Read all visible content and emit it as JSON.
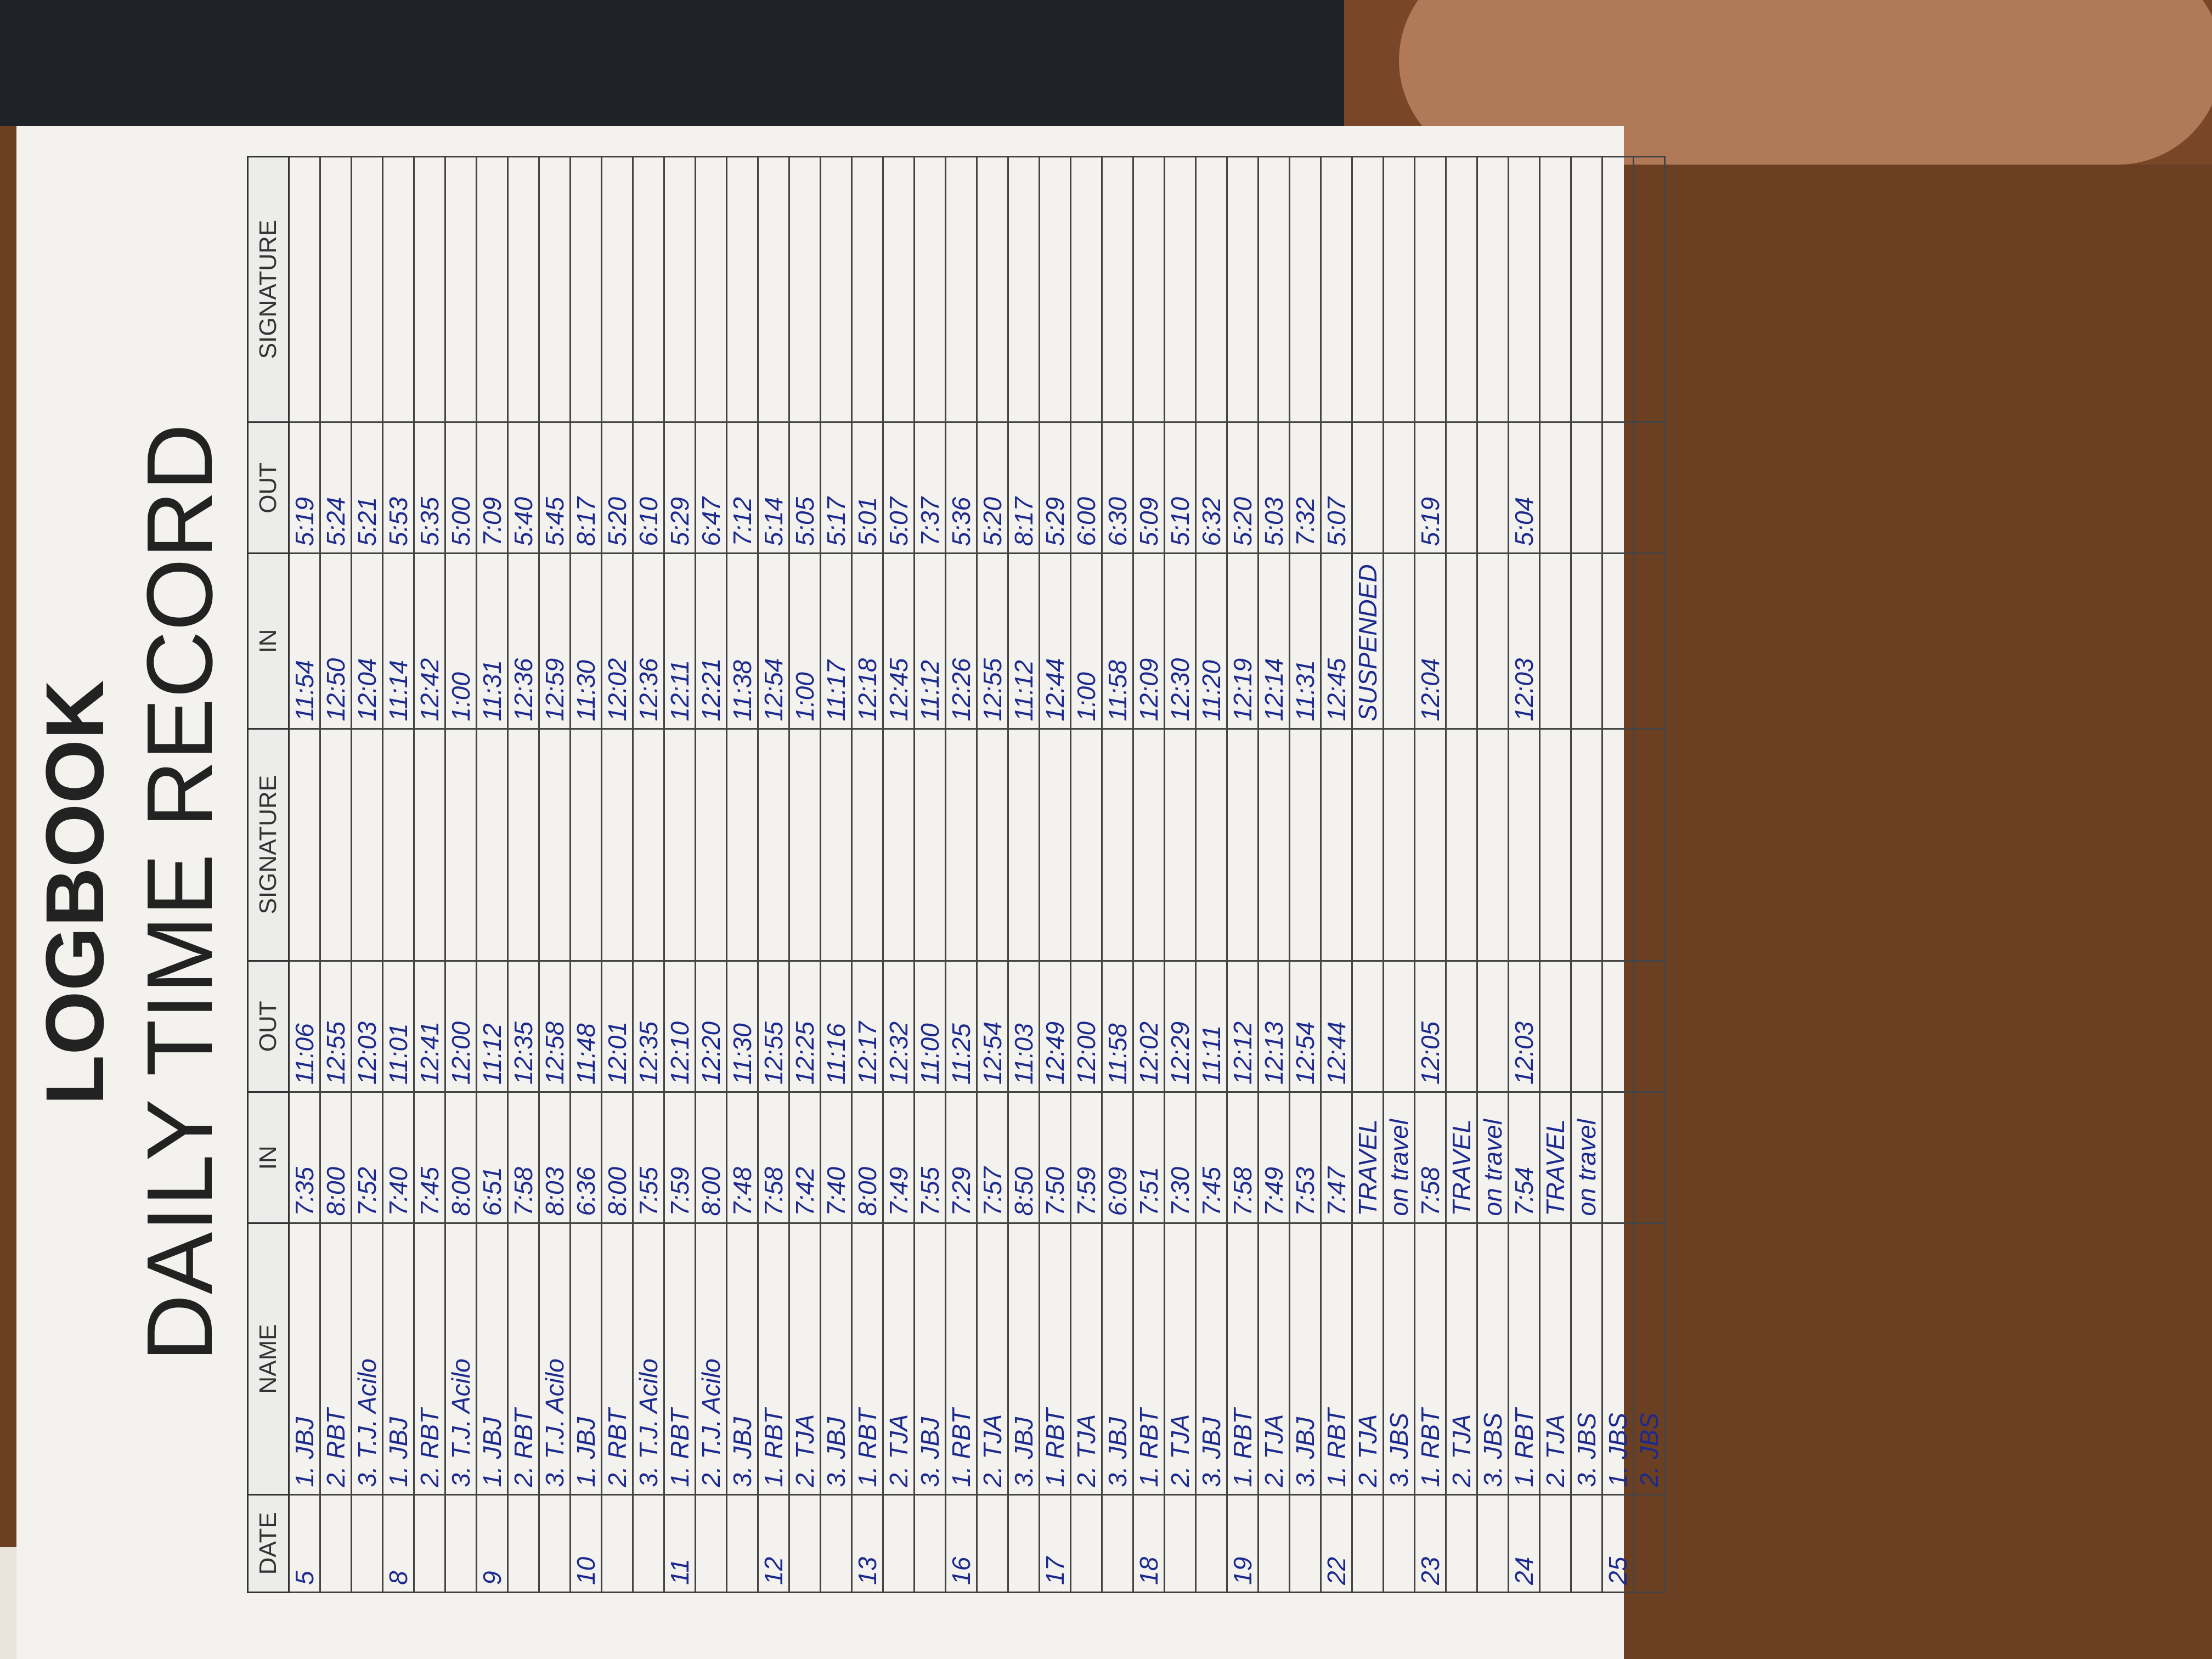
{
  "header": {
    "title": "LOGBOOK",
    "subtitle": "DAILY TIME RECORD"
  },
  "table": {
    "columns": [
      "DATE",
      "NAME",
      "IN",
      "OUT",
      "SIGNATURE",
      "IN",
      "OUT",
      "SIGNATURE"
    ],
    "rows": [
      {
        "date": "5",
        "name": "1. JBJ",
        "am_in": "7:35",
        "am_out": "11:06",
        "pm_in": "11:54",
        "pm_out": "5:19"
      },
      {
        "name": "2. RBT",
        "am_in": "8:00",
        "am_out": "12:55",
        "pm_in": "12:50",
        "pm_out": "5:24"
      },
      {
        "name": "3. T.J. Acilo",
        "am_in": "7:52",
        "am_out": "12:03",
        "pm_in": "12:04",
        "pm_out": "5:21"
      },
      {
        "date": "8",
        "name": "1. JBJ",
        "am_in": "7:40",
        "am_out": "11:01",
        "pm_in": "11:14",
        "pm_out": "5:53"
      },
      {
        "name": "2. RBT",
        "am_in": "7:45",
        "am_out": "12:41",
        "pm_in": "12:42",
        "pm_out": "5:35"
      },
      {
        "name": "3. T.J. Acilo",
        "am_in": "8:00",
        "am_out": "12:00",
        "pm_in": "1:00",
        "pm_out": "5:00"
      },
      {
        "date": "9",
        "name": "1. JBJ",
        "am_in": "6:51",
        "am_out": "11:12",
        "pm_in": "11:31",
        "pm_out": "7:09"
      },
      {
        "name": "2. RBT",
        "am_in": "7:58",
        "am_out": "12:35",
        "pm_in": "12:36",
        "pm_out": "5:40"
      },
      {
        "name": "3. T.J. Acilo",
        "am_in": "8:03",
        "am_out": "12:58",
        "pm_in": "12:59",
        "pm_out": "5:45"
      },
      {
        "date": "10",
        "name": "1. JBJ",
        "am_in": "6:36",
        "am_out": "11:48",
        "pm_in": "11:30",
        "pm_out": "8:17"
      },
      {
        "name": "2. RBT",
        "am_in": "8:00",
        "am_out": "12:01",
        "pm_in": "12:02",
        "pm_out": "5:20"
      },
      {
        "name": "3. T.J. Acilo",
        "am_in": "7:55",
        "am_out": "12:35",
        "pm_in": "12:36",
        "pm_out": "6:10"
      },
      {
        "date": "11",
        "name": "1. RBT",
        "am_in": "7:59",
        "am_out": "12:10",
        "pm_in": "12:11",
        "pm_out": "5:29"
      },
      {
        "name": "2. T.J. Acilo",
        "am_in": "8:00",
        "am_out": "12:20",
        "pm_in": "12:21",
        "pm_out": "6:47"
      },
      {
        "name": "3. JBJ",
        "am_in": "7:48",
        "am_out": "11:30",
        "pm_in": "11:38",
        "pm_out": "7:12"
      },
      {
        "date": "12",
        "name": "1. RBT",
        "am_in": "7:58",
        "am_out": "12:55",
        "pm_in": "12:54",
        "pm_out": "5:14"
      },
      {
        "name": "2. TJA",
        "am_in": "7:42",
        "am_out": "12:25",
        "pm_in": "1:00",
        "pm_out": "5:05"
      },
      {
        "name": "3. JBJ",
        "am_in": "7:40",
        "am_out": "11:16",
        "pm_in": "11:17",
        "pm_out": "5:17"
      },
      {
        "date": "13",
        "name": "1. RBT",
        "am_in": "8:00",
        "am_out": "12:17",
        "pm_in": "12:18",
        "pm_out": "5:01"
      },
      {
        "name": "2. TJA",
        "am_in": "7:49",
        "am_out": "12:32",
        "pm_in": "12:45",
        "pm_out": "5:07"
      },
      {
        "name": "3. JBJ",
        "am_in": "7:55",
        "am_out": "11:00",
        "pm_in": "11:12",
        "pm_out": "7:37"
      },
      {
        "date": "16",
        "name": "1. RBT",
        "am_in": "7:29",
        "am_out": "11:25",
        "pm_in": "12:26",
        "pm_out": "5:36"
      },
      {
        "name": "2. TJA",
        "am_in": "7:57",
        "am_out": "12:54",
        "pm_in": "12:55",
        "pm_out": "5:20"
      },
      {
        "name": "3. JBJ",
        "am_in": "8:50",
        "am_out": "11:03",
        "pm_in": "11:12",
        "pm_out": "8:17"
      },
      {
        "date": "17",
        "name": "1. RBT",
        "am_in": "7:50",
        "am_out": "12:49",
        "pm_in": "12:44",
        "pm_out": "5:29"
      },
      {
        "name": "2. TJA",
        "am_in": "7:59",
        "am_out": "12:00",
        "pm_in": "1:00",
        "pm_out": "6:00"
      },
      {
        "name": "3. JBJ",
        "am_in": "6:09",
        "am_out": "11:58",
        "pm_in": "11:58",
        "pm_out": "6:30"
      },
      {
        "date": "18",
        "name": "1. RBT",
        "am_in": "7:51",
        "am_out": "12:02",
        "pm_in": "12:09",
        "pm_out": "5:09"
      },
      {
        "name": "2. TJA",
        "am_in": "7:30",
        "am_out": "12:29",
        "pm_in": "12:30",
        "pm_out": "5:10"
      },
      {
        "name": "3. JBJ",
        "am_in": "7:45",
        "am_out": "11:11",
        "pm_in": "11:20",
        "pm_out": "6:32"
      },
      {
        "date": "19",
        "name": "1. RBT",
        "am_in": "7:58",
        "am_out": "12:12",
        "pm_in": "12:19",
        "pm_out": "5:20"
      },
      {
        "name": "2. TJA",
        "am_in": "7:49",
        "am_out": "12:13",
        "pm_in": "12:14",
        "pm_out": "5:03"
      },
      {
        "name": "3. JBJ",
        "am_in": "7:53",
        "am_out": "12:54",
        "pm_in": "11:31",
        "pm_out": "7:32"
      },
      {
        "date": "22",
        "name": "1. RBT",
        "am_in": "7:47",
        "am_out": "12:44",
        "pm_in": "12:45",
        "pm_out": "5:07"
      },
      {
        "name": "2. TJA",
        "am_in": "TRAVEL",
        "pm_in": "SUSPENDED"
      },
      {
        "name": "3. JBS",
        "am_in": "on travel"
      },
      {
        "date": "23",
        "name": "1. RBT",
        "am_in": "7:58",
        "am_out": "12:05",
        "pm_in": "12:04",
        "pm_out": "5:19"
      },
      {
        "name": "2. TJA",
        "am_in": "TRAVEL"
      },
      {
        "name": "3. JBS",
        "am_in": "on travel"
      },
      {
        "date": "24",
        "name": "1. RBT",
        "am_in": "7:54",
        "am_out": "12:03",
        "pm_in": "12:03",
        "pm_out": "5:04"
      },
      {
        "name": "2. TJA",
        "am_in": "TRAVEL"
      },
      {
        "name": "3. JBS",
        "am_in": "on travel"
      },
      {
        "date": "25",
        "name": "1. JBS"
      },
      {
        "name": "2. JBS"
      }
    ]
  }
}
